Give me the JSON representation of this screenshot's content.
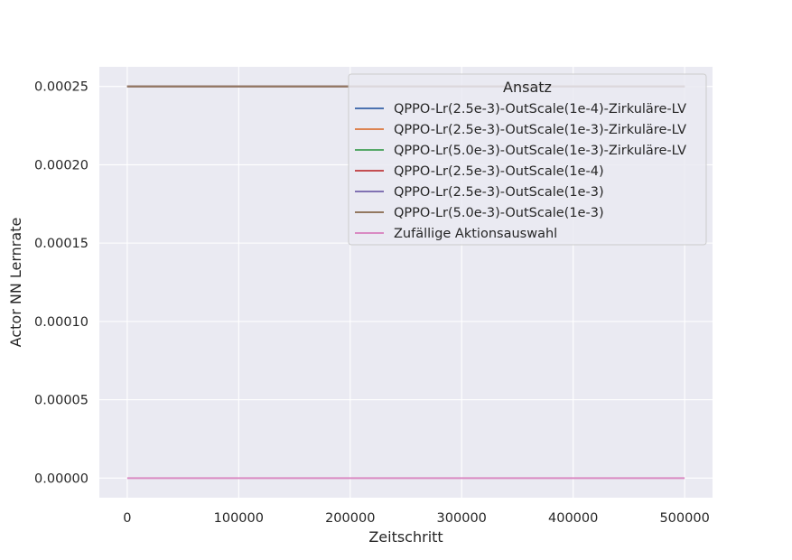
{
  "chart_data": {
    "type": "line",
    "title": "",
    "xlabel": "Zeitschritt",
    "ylabel": "Actor NN Lernrate",
    "xlim": [
      -25000,
      525000
    ],
    "ylim": [
      -1.25e-05,
      0.0002625
    ],
    "x_ticks": [
      0,
      100000,
      200000,
      300000,
      400000,
      500000
    ],
    "x_tick_labels": [
      "0",
      "100000",
      "200000",
      "300000",
      "400000",
      "500000"
    ],
    "y_ticks": [
      0,
      5e-05,
      0.0001,
      0.00015,
      0.0002,
      0.00025
    ],
    "y_tick_labels": [
      "0.00000",
      "0.00005",
      "0.00010",
      "0.00015",
      "0.00020",
      "0.00025"
    ],
    "grid": true,
    "legend": {
      "title": "Ansatz",
      "placement": "top-right"
    },
    "series": [
      {
        "name": "QPPO-Lr(2.5e-3)-OutScale(1e-4)-Zirkuläre-LV",
        "color": "#4c72b0",
        "x": [
          0,
          500000
        ],
        "y": [
          0.00025,
          0.00025
        ]
      },
      {
        "name": "QPPO-Lr(2.5e-3)-OutScale(1e-3)-Zirkuläre-LV",
        "color": "#dd8452",
        "x": [
          0,
          500000
        ],
        "y": [
          0.00025,
          0.00025
        ]
      },
      {
        "name": "QPPO-Lr(5.0e-3)-OutScale(1e-3)-Zirkuläre-LV",
        "color": "#55a868",
        "x": [
          0,
          500000
        ],
        "y": [
          0.00025,
          0.00025
        ]
      },
      {
        "name": "QPPO-Lr(2.5e-3)-OutScale(1e-4)",
        "color": "#c44e52",
        "x": [
          0,
          500000
        ],
        "y": [
          0.00025,
          0.00025
        ]
      },
      {
        "name": "QPPO-Lr(2.5e-3)-OutScale(1e-3)",
        "color": "#8172b3",
        "x": [
          0,
          500000
        ],
        "y": [
          0.00025,
          0.00025
        ]
      },
      {
        "name": "QPPO-Lr(5.0e-3)-OutScale(1e-3)",
        "color": "#937860",
        "x": [
          0,
          500000
        ],
        "y": [
          0.00025,
          0.00025
        ]
      },
      {
        "name": "Zufällige Aktionsauswahl",
        "color": "#da8bc3",
        "x": [
          0,
          500000
        ],
        "y": [
          0,
          0
        ]
      }
    ]
  },
  "style": {
    "plot_background": "#eaeaf2",
    "grid_color": "#ffffff"
  }
}
